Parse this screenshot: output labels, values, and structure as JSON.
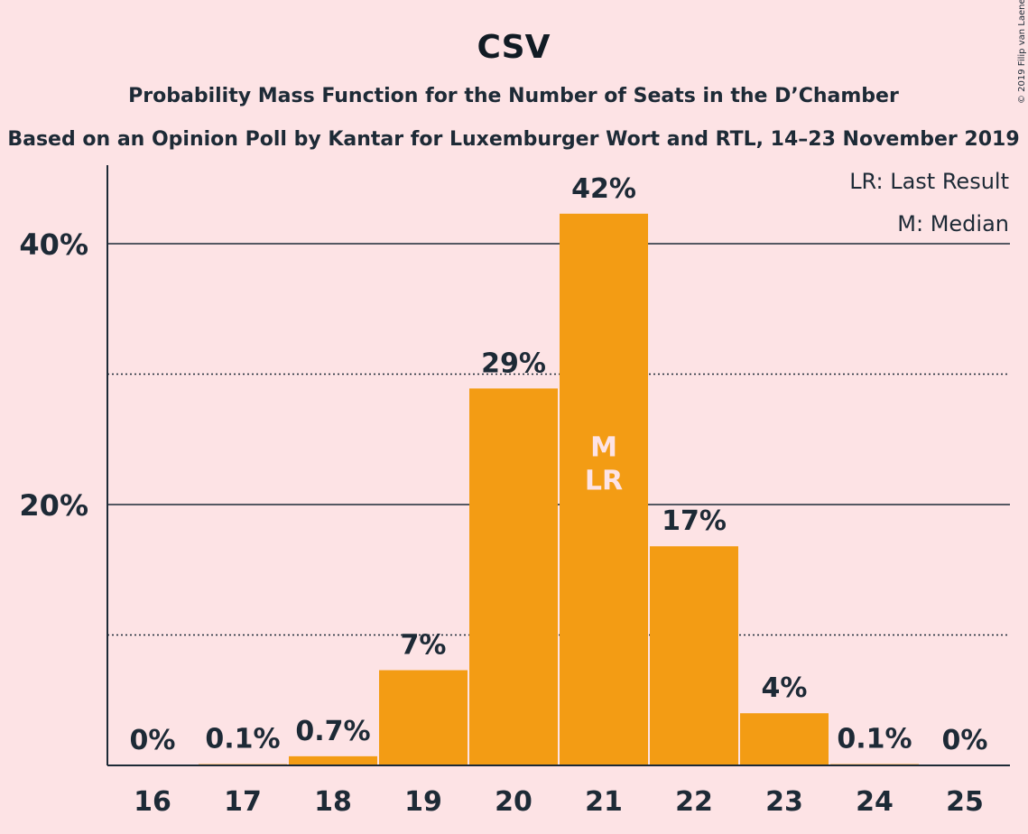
{
  "title": "CSV",
  "subtitle": "Probability Mass Function for the Number of Seats in the D’Chamber",
  "source": "Based on an Opinion Poll by Kantar for Luxemburger Wort and RTL, 14–23 November 2019",
  "legend": {
    "last_result": "LR: Last Result",
    "median": "M: Median"
  },
  "credit": "© 2019 Filip van Laenen",
  "colors": {
    "background": "#FDE3E5",
    "bar": "#F39C14",
    "text": "#1d2a36"
  },
  "chart_data": {
    "type": "bar",
    "categories": [
      "16",
      "17",
      "18",
      "19",
      "20",
      "21",
      "22",
      "23",
      "24",
      "25"
    ],
    "values": [
      0,
      0.1,
      0.7,
      7.3,
      28.9,
      42.3,
      16.8,
      4.0,
      0.1,
      0
    ],
    "data_labels": [
      "0%",
      "0.1%",
      "0.7%",
      "7%",
      "29%",
      "42%",
      "17%",
      "4%",
      "0.1%",
      "0%"
    ],
    "ylim": [
      0,
      46
    ],
    "major_ticks": [
      20,
      40
    ],
    "major_tick_labels": [
      "20%",
      "40%"
    ],
    "minor_gridlines": [
      10,
      30
    ],
    "median_category": "21",
    "last_result_category": "21",
    "median_marker": "M",
    "last_result_marker": "LR",
    "grid": true,
    "legend_position": "top-right"
  }
}
